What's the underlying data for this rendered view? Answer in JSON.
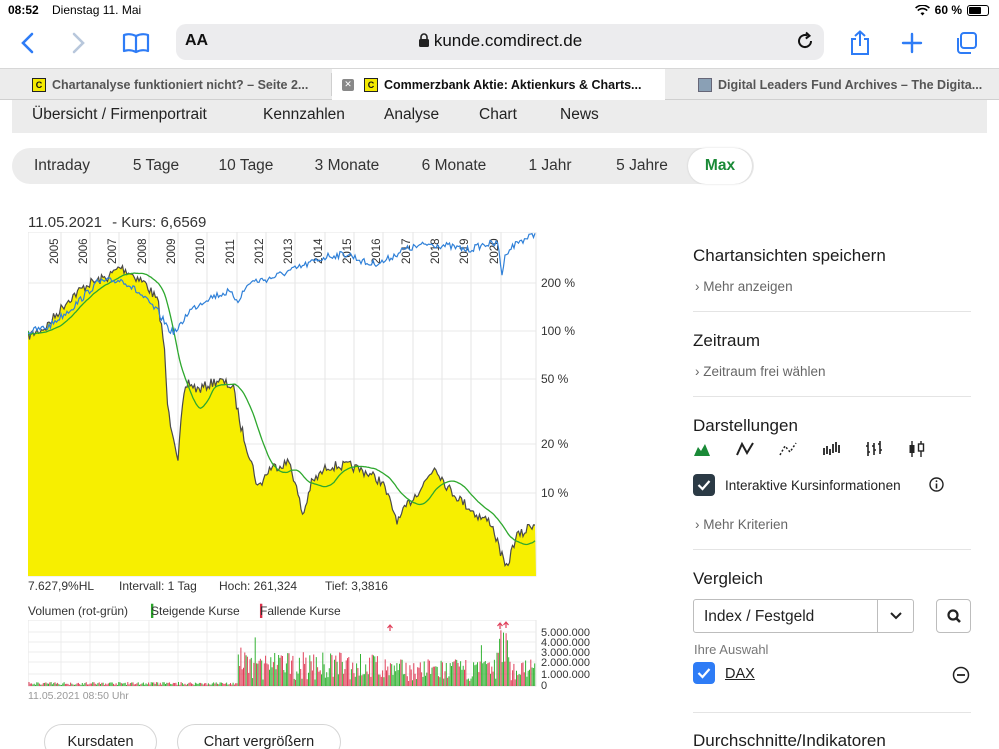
{
  "status": {
    "time": "08:52",
    "date": "Dienstag 11. Mai",
    "battery": "60 %"
  },
  "browser": {
    "url": "kunde.comdirect.de",
    "text_size_label": "AA",
    "tabs": [
      {
        "title": "Chartanalyse funktioniert nicht? – Seite 2...",
        "favicon": "C",
        "active": false
      },
      {
        "title": "Commerzbank Aktie: Aktienkurs & Charts...",
        "favicon": "C",
        "active": true
      },
      {
        "title": "Digital Leaders Fund Archives – The Digita...",
        "favicon": "image",
        "active": false
      }
    ]
  },
  "subnav": [
    "Übersicht / Firmenportrait",
    "Kennzahlen",
    "Analyse",
    "Chart",
    "News"
  ],
  "periods": [
    "Intraday",
    "5 Tage",
    "10 Tage",
    "3 Monate",
    "6 Monate",
    "1 Jahr",
    "5 Jahre",
    "Max"
  ],
  "active_period": "Max",
  "chart": {
    "header_date": "11.05.2021",
    "header_kurs": "- Kurs: 6,6569",
    "perf": "7.627,9%HL",
    "interval": "Intervall: 1 Tag",
    "high": "Hoch:  261,324",
    "low": "Tief: 3,3816",
    "vol_label": "Volumen (rot-grün)",
    "vol_up": "Steigende Kurse",
    "vol_down": "Fallende Kurse",
    "timestamp": "11.05.2021 08:50 Uhr"
  },
  "chart_data": {
    "type": "line",
    "x_ticks": [
      "2005",
      "2006",
      "2007",
      "2008",
      "2009",
      "2010",
      "2011",
      "2012",
      "2013",
      "2014",
      "2015",
      "2016",
      "2017",
      "2018",
      "2019",
      "2020"
    ],
    "y_ticks": [
      "200 %",
      "100 %",
      "50 %",
      "20 %",
      "10 %"
    ],
    "y_scale": "log",
    "volume_ticks": [
      "5.000.000",
      "4.000.000",
      "3.000.000",
      "2.000.000",
      "1.000.000",
      "0"
    ],
    "colors": {
      "price_fill": "#f7ef00",
      "price_line": "#4a4a4a",
      "ma_line": "#2ea82e",
      "index_line": "#2f80d8",
      "vol_up": "#33b233",
      "vol_down": "#e0405a"
    }
  },
  "buttons": {
    "kursdaten": "Kursdaten",
    "vergroessern": "Chart vergrößern"
  },
  "sidebar": {
    "save_title": "Chartansichten speichern",
    "save_link": "Mehr anzeigen",
    "range_title": "Zeitraum",
    "range_link": "Zeitraum frei wählen",
    "display_title": "Darstellungen",
    "interactive_label": "Interaktive Kursinformationen",
    "more_criteria": "Mehr Kriterien",
    "compare_title": "Vergleich",
    "compare_select": "Index / Festgeld",
    "selection_label": "Ihre Auswahl",
    "selection_item": "DAX",
    "indicators_title": "Durchschnitte/Indikatoren"
  }
}
